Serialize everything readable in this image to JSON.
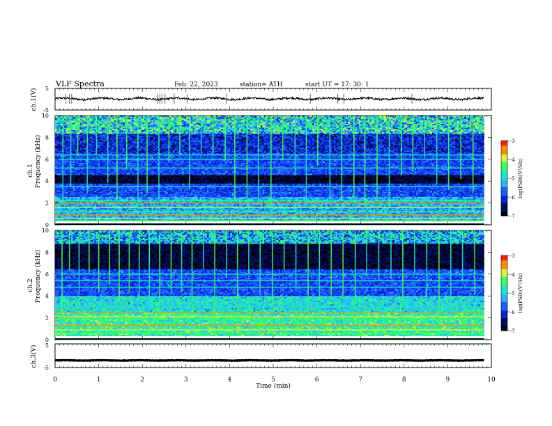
{
  "header": {
    "title": "VLF  Spectra",
    "date": "Feb. 22, 2023",
    "station": "station= ATH",
    "start": "start  UT  =    17: 30: 1"
  },
  "chart_data": [
    {
      "type": "line",
      "panel": "ch1-waveform",
      "ylabel": "ch.1(V)",
      "ylim": [
        -5,
        5
      ],
      "y_ticks": [
        "5",
        "-5"
      ],
      "xlim": [
        0,
        10
      ],
      "baseline": 0.2,
      "spikes_min": [
        0.25,
        0.33,
        0.38,
        2.35,
        2.4,
        2.45,
        2.52,
        2.73,
        3.03,
        3.92,
        5.85,
        6.48,
        6.62,
        8.18
      ],
      "spike_amplitude": 2.3
    },
    {
      "type": "heatmap",
      "panel": "ch1-spectrogram",
      "ylabel": "ch.1\nFrequency (kHz)",
      "ylim": [
        0,
        10
      ],
      "y_ticks": [
        "0",
        "2",
        "4",
        "6",
        "8",
        "10"
      ],
      "xlim": [
        0,
        10
      ],
      "colorbar": {
        "label": "log(PSD)(V²/Hz)",
        "range": [
          -7,
          -3
        ],
        "ticks": [
          "-3",
          "-4",
          "-5",
          "-6",
          "-7"
        ]
      },
      "dark_band_khz": [
        3.8,
        4.5
      ],
      "tone_lines_khz": [
        0.4,
        0.6,
        0.9,
        1.2,
        1.6,
        2.0,
        2.2,
        3.5,
        5.2,
        6.0,
        6.4
      ],
      "sferic_times_min": [
        0.18,
        0.36,
        0.52,
        0.74,
        0.95,
        1.21,
        1.42,
        1.64,
        1.9,
        2.11,
        2.38,
        2.61,
        2.86,
        3.08,
        3.35,
        3.62,
        3.9,
        4.12,
        4.4,
        4.66,
        4.95,
        5.22,
        5.5,
        5.76,
        6.02,
        6.3,
        6.57,
        6.85,
        7.1,
        7.38,
        7.66,
        7.94,
        8.2,
        8.47,
        8.75,
        9.02,
        9.3,
        9.58
      ]
    },
    {
      "type": "heatmap",
      "panel": "ch2-spectrogram",
      "ylabel": "ch.2\nFrequency (kHz)",
      "ylim": [
        0,
        10
      ],
      "y_ticks": [
        "0",
        "2",
        "4",
        "6",
        "8",
        "10"
      ],
      "xlim": [
        0,
        10
      ],
      "colorbar": {
        "label": "log(PSD)(V²/Hz)",
        "range": [
          -7,
          -3
        ],
        "ticks": [
          "-3",
          "-4",
          "-5",
          "-6",
          "-7"
        ]
      },
      "dark_band_khz": [
        6.5,
        9.0
      ],
      "tone_lines_khz": [
        0.6,
        0.9,
        1.3,
        1.9,
        2.1,
        2.5,
        3.0,
        4.8,
        5.4,
        6.0
      ],
      "sferic_times_min": [
        0.16,
        0.33,
        0.55,
        0.78,
        1.0,
        1.25,
        1.47,
        1.7,
        1.93,
        2.16,
        2.4,
        2.66,
        2.9,
        3.14,
        3.4,
        3.66,
        3.93,
        4.18,
        4.44,
        4.7,
        4.98,
        5.25,
        5.52,
        5.8,
        6.06,
        6.33,
        6.6,
        6.88,
        7.14,
        7.42,
        7.7,
        7.97,
        8.24,
        8.52,
        8.8,
        9.07,
        9.34,
        9.62
      ]
    },
    {
      "type": "line",
      "panel": "ch3-waveform",
      "ylabel": "ch.3(V)",
      "ylim": [
        -5,
        5
      ],
      "y_ticks": [
        "5",
        "-5"
      ],
      "xlim": [
        0,
        10
      ],
      "baseline": -2.0
    }
  ],
  "x_axis": {
    "label": "Time  (min)",
    "ticks": [
      "0",
      "1",
      "2",
      "3",
      "4",
      "5",
      "6",
      "7",
      "8",
      "9",
      "10"
    ],
    "data_end_min": 9.83
  },
  "colors": {
    "spectrogram_scale": [
      "#000000",
      "#000c5c",
      "#0a24d6",
      "#1a60ff",
      "#2ab4ff",
      "#1ee6c8",
      "#3cff5a",
      "#d7f23c",
      "#ff8c00",
      "#ff1a00",
      "#ffffff"
    ],
    "waveform": "#000000"
  }
}
